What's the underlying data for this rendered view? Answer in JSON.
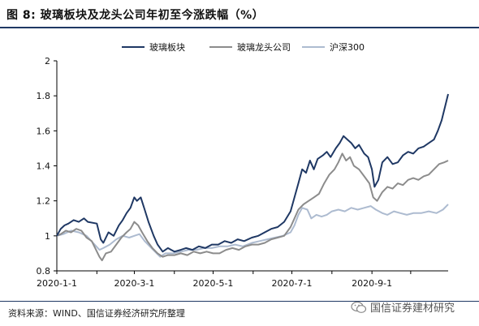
{
  "title": "图 8:  玻璃板块及龙头公司年初至今涨跌幅（%）",
  "source": "资料来源：WIND、国信证券经济研究所整理",
  "watermark": "国信证券建材研究",
  "chart_data": {
    "type": "line",
    "title": "",
    "xlabel": "",
    "ylabel": "",
    "ylim": [
      0.8,
      2.0
    ],
    "yticks": [
      "0.8",
      "1",
      "1.2",
      "1.4",
      "1.6",
      "1.8",
      "2"
    ],
    "xticks": [
      "2020-1-1",
      "2020-3-1",
      "2020-5-1",
      "2020-7-1",
      "2020-9-1"
    ],
    "xtick_dates": [
      "2020-01-01",
      "2020-03-01",
      "2020-05-01",
      "2020-07-01",
      "2020-09-01"
    ],
    "xlim": [
      "2020-01-01",
      "2020-10-30"
    ],
    "legend_position": "top",
    "grid": false,
    "series": [
      {
        "name": "玻璃板块",
        "color": "#1f3864",
        "points": [
          [
            "2020-01-01",
            1.0
          ],
          [
            "2020-01-04",
            1.04
          ],
          [
            "2020-01-07",
            1.06
          ],
          [
            "2020-01-10",
            1.07
          ],
          [
            "2020-01-14",
            1.09
          ],
          [
            "2020-01-18",
            1.08
          ],
          [
            "2020-01-22",
            1.1
          ],
          [
            "2020-01-25",
            1.08
          ],
          [
            "2020-02-01",
            1.07
          ],
          [
            "2020-02-04",
            0.98
          ],
          [
            "2020-02-06",
            0.96
          ],
          [
            "2020-02-10",
            1.02
          ],
          [
            "2020-02-14",
            1.0
          ],
          [
            "2020-02-18",
            1.06
          ],
          [
            "2020-02-21",
            1.09
          ],
          [
            "2020-02-24",
            1.13
          ],
          [
            "2020-02-27",
            1.16
          ],
          [
            "2020-03-01",
            1.22
          ],
          [
            "2020-03-03",
            1.2
          ],
          [
            "2020-03-06",
            1.22
          ],
          [
            "2020-03-09",
            1.15
          ],
          [
            "2020-03-12",
            1.08
          ],
          [
            "2020-03-16",
            1.0
          ],
          [
            "2020-03-19",
            0.95
          ],
          [
            "2020-03-23",
            0.91
          ],
          [
            "2020-03-27",
            0.93
          ],
          [
            "2020-04-01",
            0.91
          ],
          [
            "2020-04-06",
            0.92
          ],
          [
            "2020-04-10",
            0.93
          ],
          [
            "2020-04-15",
            0.92
          ],
          [
            "2020-04-20",
            0.94
          ],
          [
            "2020-04-25",
            0.93
          ],
          [
            "2020-04-30",
            0.95
          ],
          [
            "2020-05-05",
            0.95
          ],
          [
            "2020-05-10",
            0.97
          ],
          [
            "2020-05-15",
            0.96
          ],
          [
            "2020-05-20",
            0.98
          ],
          [
            "2020-05-25",
            0.97
          ],
          [
            "2020-05-31",
            0.99
          ],
          [
            "2020-06-05",
            1.0
          ],
          [
            "2020-06-10",
            1.02
          ],
          [
            "2020-06-15",
            1.04
          ],
          [
            "2020-06-20",
            1.05
          ],
          [
            "2020-06-25",
            1.08
          ],
          [
            "2020-06-30",
            1.14
          ],
          [
            "2020-07-03",
            1.22
          ],
          [
            "2020-07-06",
            1.3
          ],
          [
            "2020-07-09",
            1.38
          ],
          [
            "2020-07-12",
            1.36
          ],
          [
            "2020-07-15",
            1.43
          ],
          [
            "2020-07-18",
            1.38
          ],
          [
            "2020-07-21",
            1.44
          ],
          [
            "2020-07-25",
            1.46
          ],
          [
            "2020-07-28",
            1.48
          ],
          [
            "2020-07-31",
            1.45
          ],
          [
            "2020-08-04",
            1.5
          ],
          [
            "2020-08-07",
            1.53
          ],
          [
            "2020-08-10",
            1.57
          ],
          [
            "2020-08-13",
            1.55
          ],
          [
            "2020-08-16",
            1.53
          ],
          [
            "2020-08-19",
            1.5
          ],
          [
            "2020-08-22",
            1.52
          ],
          [
            "2020-08-26",
            1.47
          ],
          [
            "2020-08-29",
            1.45
          ],
          [
            "2020-09-01",
            1.38
          ],
          [
            "2020-09-03",
            1.28
          ],
          [
            "2020-09-06",
            1.32
          ],
          [
            "2020-09-09",
            1.42
          ],
          [
            "2020-09-13",
            1.45
          ],
          [
            "2020-09-17",
            1.41
          ],
          [
            "2020-09-21",
            1.42
          ],
          [
            "2020-09-25",
            1.46
          ],
          [
            "2020-09-29",
            1.48
          ],
          [
            "2020-10-03",
            1.47
          ],
          [
            "2020-10-07",
            1.5
          ],
          [
            "2020-10-11",
            1.51
          ],
          [
            "2020-10-15",
            1.53
          ],
          [
            "2020-10-19",
            1.55
          ],
          [
            "2020-10-22",
            1.6
          ],
          [
            "2020-10-25",
            1.66
          ],
          [
            "2020-10-28",
            1.75
          ],
          [
            "2020-10-30",
            1.81
          ]
        ]
      },
      {
        "name": "玻璃龙头公司",
        "color": "#8c8c8c",
        "points": [
          [
            "2020-01-01",
            1.0
          ],
          [
            "2020-01-04",
            1.01
          ],
          [
            "2020-01-08",
            1.03
          ],
          [
            "2020-01-12",
            1.02
          ],
          [
            "2020-01-16",
            1.04
          ],
          [
            "2020-01-20",
            1.03
          ],
          [
            "2020-01-24",
            0.99
          ],
          [
            "2020-01-28",
            0.97
          ],
          [
            "2020-02-03",
            0.88
          ],
          [
            "2020-02-05",
            0.86
          ],
          [
            "2020-02-08",
            0.9
          ],
          [
            "2020-02-12",
            0.91
          ],
          [
            "2020-02-16",
            0.95
          ],
          [
            "2020-02-20",
            0.99
          ],
          [
            "2020-02-24",
            1.02
          ],
          [
            "2020-02-27",
            1.04
          ],
          [
            "2020-03-01",
            1.08
          ],
          [
            "2020-03-04",
            1.06
          ],
          [
            "2020-03-07",
            1.02
          ],
          [
            "2020-03-11",
            0.97
          ],
          [
            "2020-03-15",
            0.93
          ],
          [
            "2020-03-19",
            0.9
          ],
          [
            "2020-03-23",
            0.88
          ],
          [
            "2020-03-27",
            0.89
          ],
          [
            "2020-04-01",
            0.89
          ],
          [
            "2020-04-06",
            0.9
          ],
          [
            "2020-04-11",
            0.89
          ],
          [
            "2020-04-16",
            0.91
          ],
          [
            "2020-04-21",
            0.9
          ],
          [
            "2020-04-26",
            0.91
          ],
          [
            "2020-05-01",
            0.9
          ],
          [
            "2020-05-06",
            0.9
          ],
          [
            "2020-05-11",
            0.92
          ],
          [
            "2020-05-16",
            0.93
          ],
          [
            "2020-05-21",
            0.92
          ],
          [
            "2020-05-26",
            0.94
          ],
          [
            "2020-05-31",
            0.95
          ],
          [
            "2020-06-05",
            0.95
          ],
          [
            "2020-06-10",
            0.96
          ],
          [
            "2020-06-15",
            0.98
          ],
          [
            "2020-06-20",
            0.99
          ],
          [
            "2020-06-25",
            1.0
          ],
          [
            "2020-06-30",
            1.05
          ],
          [
            "2020-07-03",
            1.1
          ],
          [
            "2020-07-06",
            1.15
          ],
          [
            "2020-07-10",
            1.18
          ],
          [
            "2020-07-14",
            1.2
          ],
          [
            "2020-07-18",
            1.22
          ],
          [
            "2020-07-22",
            1.24
          ],
          [
            "2020-07-26",
            1.3
          ],
          [
            "2020-07-30",
            1.35
          ],
          [
            "2020-08-03",
            1.38
          ],
          [
            "2020-08-06",
            1.42
          ],
          [
            "2020-08-09",
            1.47
          ],
          [
            "2020-08-12",
            1.43
          ],
          [
            "2020-08-15",
            1.45
          ],
          [
            "2020-08-18",
            1.4
          ],
          [
            "2020-08-22",
            1.38
          ],
          [
            "2020-08-26",
            1.34
          ],
          [
            "2020-08-30",
            1.3
          ],
          [
            "2020-09-02",
            1.22
          ],
          [
            "2020-09-05",
            1.2
          ],
          [
            "2020-09-09",
            1.25
          ],
          [
            "2020-09-13",
            1.28
          ],
          [
            "2020-09-17",
            1.27
          ],
          [
            "2020-09-21",
            1.3
          ],
          [
            "2020-09-25",
            1.29
          ],
          [
            "2020-09-29",
            1.32
          ],
          [
            "2020-10-03",
            1.33
          ],
          [
            "2020-10-07",
            1.32
          ],
          [
            "2020-10-11",
            1.34
          ],
          [
            "2020-10-15",
            1.35
          ],
          [
            "2020-10-19",
            1.38
          ],
          [
            "2020-10-23",
            1.41
          ],
          [
            "2020-10-27",
            1.42
          ],
          [
            "2020-10-30",
            1.43
          ]
        ]
      },
      {
        "name": "沪深300",
        "color": "#adbbd0",
        "points": [
          [
            "2020-01-01",
            1.0
          ],
          [
            "2020-01-06",
            1.01
          ],
          [
            "2020-01-12",
            1.03
          ],
          [
            "2020-01-18",
            1.02
          ],
          [
            "2020-01-24",
            1.0
          ],
          [
            "2020-02-03",
            0.92
          ],
          [
            "2020-02-06",
            0.93
          ],
          [
            "2020-02-11",
            0.95
          ],
          [
            "2020-02-16",
            0.98
          ],
          [
            "2020-02-21",
            1.0
          ],
          [
            "2020-02-26",
            0.99
          ],
          [
            "2020-03-01",
            1.0
          ],
          [
            "2020-03-05",
            1.01
          ],
          [
            "2020-03-09",
            0.97
          ],
          [
            "2020-03-13",
            0.94
          ],
          [
            "2020-03-17",
            0.91
          ],
          [
            "2020-03-21",
            0.88
          ],
          [
            "2020-03-25",
            0.9
          ],
          [
            "2020-03-31",
            0.9
          ],
          [
            "2020-04-06",
            0.91
          ],
          [
            "2020-04-12",
            0.92
          ],
          [
            "2020-04-18",
            0.92
          ],
          [
            "2020-04-24",
            0.93
          ],
          [
            "2020-04-30",
            0.93
          ],
          [
            "2020-05-06",
            0.94
          ],
          [
            "2020-05-12",
            0.94
          ],
          [
            "2020-05-18",
            0.95
          ],
          [
            "2020-05-24",
            0.94
          ],
          [
            "2020-05-31",
            0.96
          ],
          [
            "2020-06-06",
            0.97
          ],
          [
            "2020-06-12",
            0.98
          ],
          [
            "2020-06-18",
            0.99
          ],
          [
            "2020-06-24",
            1.0
          ],
          [
            "2020-06-30",
            1.02
          ],
          [
            "2020-07-03",
            1.06
          ],
          [
            "2020-07-06",
            1.12
          ],
          [
            "2020-07-09",
            1.16
          ],
          [
            "2020-07-13",
            1.15
          ],
          [
            "2020-07-16",
            1.1
          ],
          [
            "2020-07-20",
            1.12
          ],
          [
            "2020-07-24",
            1.11
          ],
          [
            "2020-07-28",
            1.12
          ],
          [
            "2020-08-01",
            1.14
          ],
          [
            "2020-08-06",
            1.15
          ],
          [
            "2020-08-11",
            1.14
          ],
          [
            "2020-08-16",
            1.16
          ],
          [
            "2020-08-21",
            1.15
          ],
          [
            "2020-08-26",
            1.16
          ],
          [
            "2020-08-31",
            1.17
          ],
          [
            "2020-09-04",
            1.15
          ],
          [
            "2020-09-09",
            1.13
          ],
          [
            "2020-09-13",
            1.12
          ],
          [
            "2020-09-18",
            1.14
          ],
          [
            "2020-09-23",
            1.13
          ],
          [
            "2020-09-28",
            1.12
          ],
          [
            "2020-10-03",
            1.13
          ],
          [
            "2020-10-09",
            1.13
          ],
          [
            "2020-10-15",
            1.14
          ],
          [
            "2020-10-21",
            1.13
          ],
          [
            "2020-10-26",
            1.15
          ],
          [
            "2020-10-30",
            1.18
          ]
        ]
      }
    ]
  }
}
